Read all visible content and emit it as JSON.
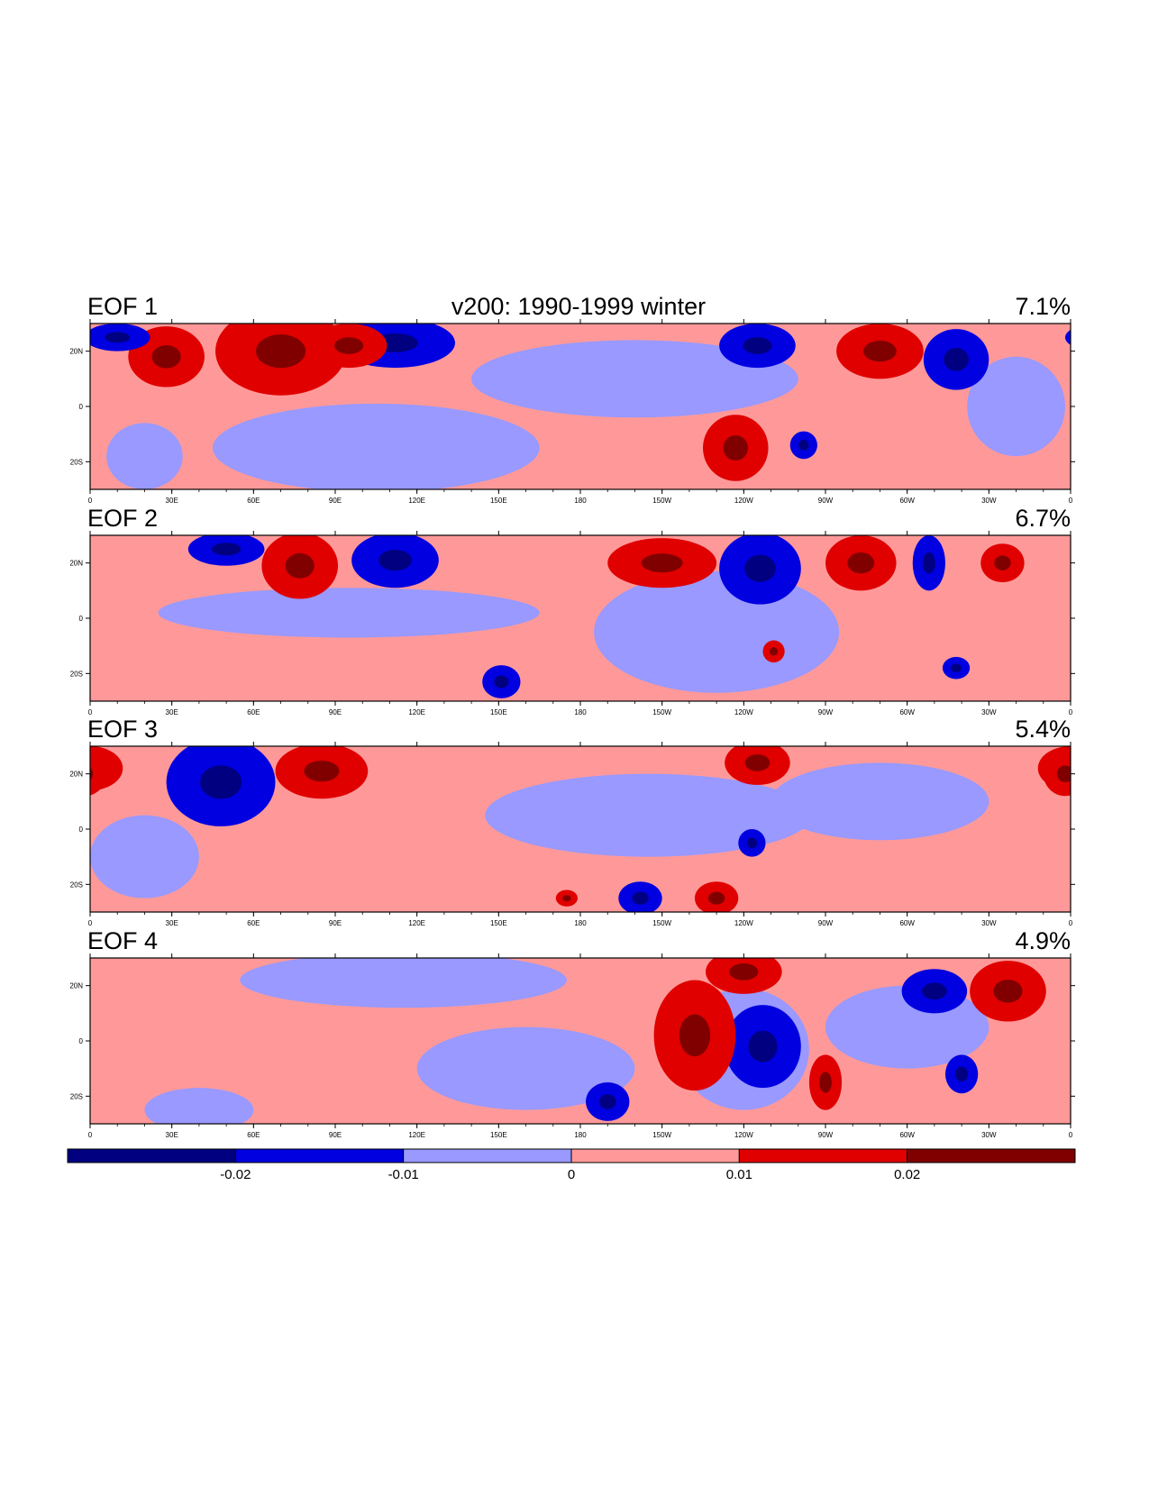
{
  "title": "v200: 1990-1999 winter",
  "chart_data": {
    "type": "heatmap",
    "title": "v200: 1990-1999 winter",
    "x_ticks": [
      "0",
      "30E",
      "60E",
      "90E",
      "120E",
      "150E",
      "180",
      "150W",
      "120W",
      "90W",
      "60W",
      "30W",
      "0"
    ],
    "y_ticks": [
      "20N",
      "0",
      "20S"
    ],
    "xlim": [
      0,
      360
    ],
    "ylim": [
      -30,
      30
    ],
    "panels": [
      {
        "label": "EOF 1",
        "variance": "7.1%",
        "blobs": [
          {
            "lon": 70,
            "lat": 20,
            "rlon": 24,
            "rlat": 16,
            "level": 2
          },
          {
            "lon": 112,
            "lat": 23,
            "rlon": 22,
            "rlat": 9,
            "level": -2
          },
          {
            "lon": 105,
            "lat": -15,
            "rlon": 60,
            "rlat": 16,
            "level": -1
          },
          {
            "lon": 200,
            "lat": 10,
            "rlon": 60,
            "rlat": 14,
            "level": -1
          },
          {
            "lon": 237,
            "lat": -15,
            "rlon": 12,
            "rlat": 12,
            "level": 2
          },
          {
            "lon": 262,
            "lat": -14,
            "rlon": 5,
            "rlat": 5,
            "level": -2
          },
          {
            "lon": 245,
            "lat": 22,
            "rlon": 14,
            "rlat": 8,
            "level": -2
          },
          {
            "lon": 290,
            "lat": 20,
            "rlon": 16,
            "rlat": 10,
            "level": 2
          },
          {
            "lon": 318,
            "lat": 17,
            "rlon": 12,
            "rlat": 11,
            "level": -2
          },
          {
            "lon": 28,
            "lat": 18,
            "rlon": 14,
            "rlat": 11,
            "level": 2
          },
          {
            "lon": 10,
            "lat": 25,
            "rlon": 12,
            "rlat": 5,
            "level": -2
          },
          {
            "lon": 20,
            "lat": -18,
            "rlon": 14,
            "rlat": 12,
            "level": -1
          },
          {
            "lon": 95,
            "lat": 22,
            "rlon": 14,
            "rlat": 8,
            "level": 2
          },
          {
            "lon": 340,
            "lat": 0,
            "rlon": 18,
            "rlat": 18,
            "level": -1
          }
        ]
      },
      {
        "label": "EOF 2",
        "variance": "6.7%",
        "blobs": [
          {
            "lon": 77,
            "lat": 19,
            "rlon": 14,
            "rlat": 12,
            "level": 2
          },
          {
            "lon": 50,
            "lat": 25,
            "rlon": 14,
            "rlat": 6,
            "level": -2
          },
          {
            "lon": 112,
            "lat": 21,
            "rlon": 16,
            "rlat": 10,
            "level": -2
          },
          {
            "lon": 210,
            "lat": 20,
            "rlon": 20,
            "rlat": 9,
            "level": 2
          },
          {
            "lon": 246,
            "lat": 18,
            "rlon": 15,
            "rlat": 13,
            "level": -2
          },
          {
            "lon": 283,
            "lat": 20,
            "rlon": 13,
            "rlat": 10,
            "level": 2
          },
          {
            "lon": 308,
            "lat": 20,
            "rlon": 6,
            "rlat": 10,
            "level": -2
          },
          {
            "lon": 335,
            "lat": 20,
            "rlon": 8,
            "rlat": 7,
            "level": 2
          },
          {
            "lon": 151,
            "lat": -23,
            "rlon": 7,
            "rlat": 6,
            "level": -2
          },
          {
            "lon": 230,
            "lat": -5,
            "rlon": 45,
            "rlat": 22,
            "level": -1
          },
          {
            "lon": 95,
            "lat": 2,
            "rlon": 70,
            "rlat": 9,
            "level": -1
          },
          {
            "lon": 318,
            "lat": -18,
            "rlon": 5,
            "rlat": 4,
            "level": -2
          },
          {
            "lon": 251,
            "lat": -12,
            "rlon": 4,
            "rlat": 4,
            "level": 2
          }
        ]
      },
      {
        "label": "EOF 3",
        "variance": "5.4%",
        "blobs": [
          {
            "lon": 48,
            "lat": 17,
            "rlon": 20,
            "rlat": 16,
            "level": -2
          },
          {
            "lon": 85,
            "lat": 21,
            "rlon": 17,
            "rlat": 10,
            "level": 2
          },
          {
            "lon": 0,
            "lat": 22,
            "rlon": 12,
            "rlat": 8,
            "level": 2
          },
          {
            "lon": 245,
            "lat": 24,
            "rlon": 12,
            "rlat": 8,
            "level": 2
          },
          {
            "lon": 358,
            "lat": 20,
            "rlon": 8,
            "rlat": 8,
            "level": 2
          },
          {
            "lon": 205,
            "lat": 5,
            "rlon": 60,
            "rlat": 15,
            "level": -1
          },
          {
            "lon": 290,
            "lat": 10,
            "rlon": 40,
            "rlat": 14,
            "level": -1
          },
          {
            "lon": 20,
            "lat": -10,
            "rlon": 20,
            "rlat": 15,
            "level": -1
          },
          {
            "lon": 202,
            "lat": -25,
            "rlon": 8,
            "rlat": 6,
            "level": -2
          },
          {
            "lon": 230,
            "lat": -25,
            "rlon": 8,
            "rlat": 6,
            "level": 2
          },
          {
            "lon": 243,
            "lat": -5,
            "rlon": 5,
            "rlat": 5,
            "level": -2
          },
          {
            "lon": 175,
            "lat": -25,
            "rlon": 4,
            "rlat": 3,
            "level": 2
          }
        ]
      },
      {
        "label": "EOF 4",
        "variance": "4.9%",
        "blobs": [
          {
            "lon": 240,
            "lat": -3,
            "rlon": 24,
            "rlat": 22,
            "level": -1
          },
          {
            "lon": 247,
            "lat": -2,
            "rlon": 14,
            "rlat": 15,
            "level": -2
          },
          {
            "lon": 222,
            "lat": 2,
            "rlon": 15,
            "rlat": 20,
            "level": 2
          },
          {
            "lon": 240,
            "lat": 25,
            "rlon": 14,
            "rlat": 8,
            "level": 2
          },
          {
            "lon": 270,
            "lat": -15,
            "rlon": 6,
            "rlat": 10,
            "level": 2
          },
          {
            "lon": 310,
            "lat": 18,
            "rlon": 12,
            "rlat": 8,
            "level": -2
          },
          {
            "lon": 337,
            "lat": 18,
            "rlon": 14,
            "rlat": 11,
            "level": 2
          },
          {
            "lon": 320,
            "lat": -12,
            "rlon": 6,
            "rlat": 7,
            "level": -2
          },
          {
            "lon": 190,
            "lat": -22,
            "rlon": 8,
            "rlat": 7,
            "level": -2
          },
          {
            "lon": 115,
            "lat": 22,
            "rlon": 60,
            "rlat": 10,
            "level": -1
          },
          {
            "lon": 160,
            "lat": -10,
            "rlon": 40,
            "rlat": 15,
            "level": -1
          },
          {
            "lon": 300,
            "lat": 5,
            "rlon": 30,
            "rlat": 15,
            "level": -1
          },
          {
            "lon": 40,
            "lat": -25,
            "rlon": 20,
            "rlat": 8,
            "level": -1
          }
        ]
      }
    ],
    "colorbar": {
      "levels": [
        "-0.02",
        "-0.01",
        "0",
        "0.01",
        "0.02"
      ],
      "colors": [
        "#000080",
        "#0000e0",
        "#9999ff",
        "#ff9999",
        "#e00000",
        "#800000"
      ]
    }
  }
}
